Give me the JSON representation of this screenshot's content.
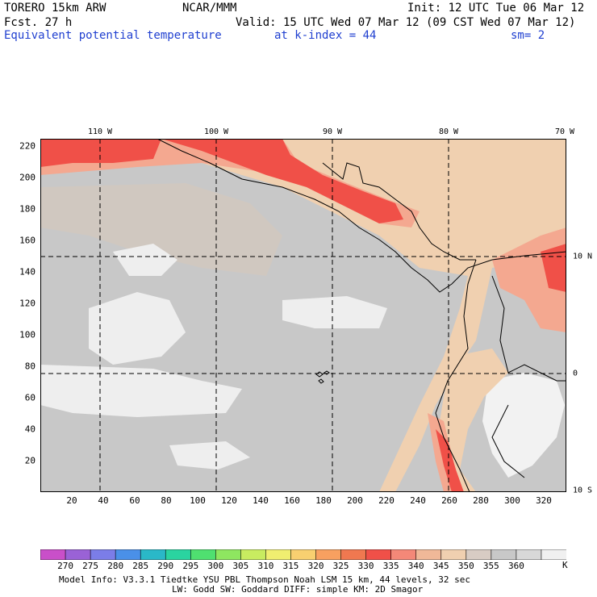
{
  "header": {
    "model": "TORERO  15km ARW",
    "org": "NCAR/MMM",
    "init": "Init: 12 UTC Tue 06 Mar 12",
    "fcst": "Fcst.   27 h",
    "valid": "Valid: 15 UTC Wed 07 Mar 12 (09 CST Wed 07 Mar 12)",
    "field": "Equivalent potential temperature",
    "level": "at k-index =  44",
    "smooth": "sm= 2"
  },
  "axes": {
    "lon_labels": [
      "110 W",
      "100 W",
      "90 W",
      "80 W",
      "70 W"
    ],
    "lat_labels": [
      "10 N",
      "0",
      "10 S"
    ],
    "y_ticks": [
      "220",
      "200",
      "180",
      "160",
      "140",
      "120",
      "100",
      "80",
      "60",
      "40",
      "20"
    ],
    "x_ticks": [
      "20",
      "40",
      "60",
      "80",
      "100",
      "120",
      "140",
      "160",
      "180",
      "200",
      "220",
      "240",
      "260",
      "280",
      "300",
      "320"
    ]
  },
  "colorbar": {
    "labels": [
      "270",
      "275",
      "280",
      "285",
      "290",
      "295",
      "300",
      "305",
      "310",
      "315",
      "320",
      "325",
      "330",
      "335",
      "340",
      "345",
      "350",
      "355",
      "360"
    ],
    "unit": "K",
    "colors": [
      "#c94fc9",
      "#9a62d6",
      "#7b7de8",
      "#4a90e8",
      "#2ab8c8",
      "#2ad4a0",
      "#4fe070",
      "#8ee660",
      "#c8ec60",
      "#f0ee70",
      "#f8d070",
      "#f8a060",
      "#f07850",
      "#f05048",
      "#f48878",
      "#f0b898",
      "#f0d0b0",
      "#d8ccc4",
      "#c8c8c8",
      "#d8d8d8",
      "#f0f0f0"
    ]
  },
  "map": {
    "background_color": "#c8c8c8",
    "warm_color": "#f05048",
    "mid_color": "#f48878",
    "light_color": "#f0d0b0",
    "cool_color": "#f0f0f0"
  },
  "footer": {
    "line1": "Model Info: V3.3.1    Tiedtke YSU PBL  Thompson    Noah LSM  15 km,    44 levels,    32 sec",
    "line2": "LW: Godd SW: Goddard DIFF: simple KM: 2D Smagor"
  }
}
